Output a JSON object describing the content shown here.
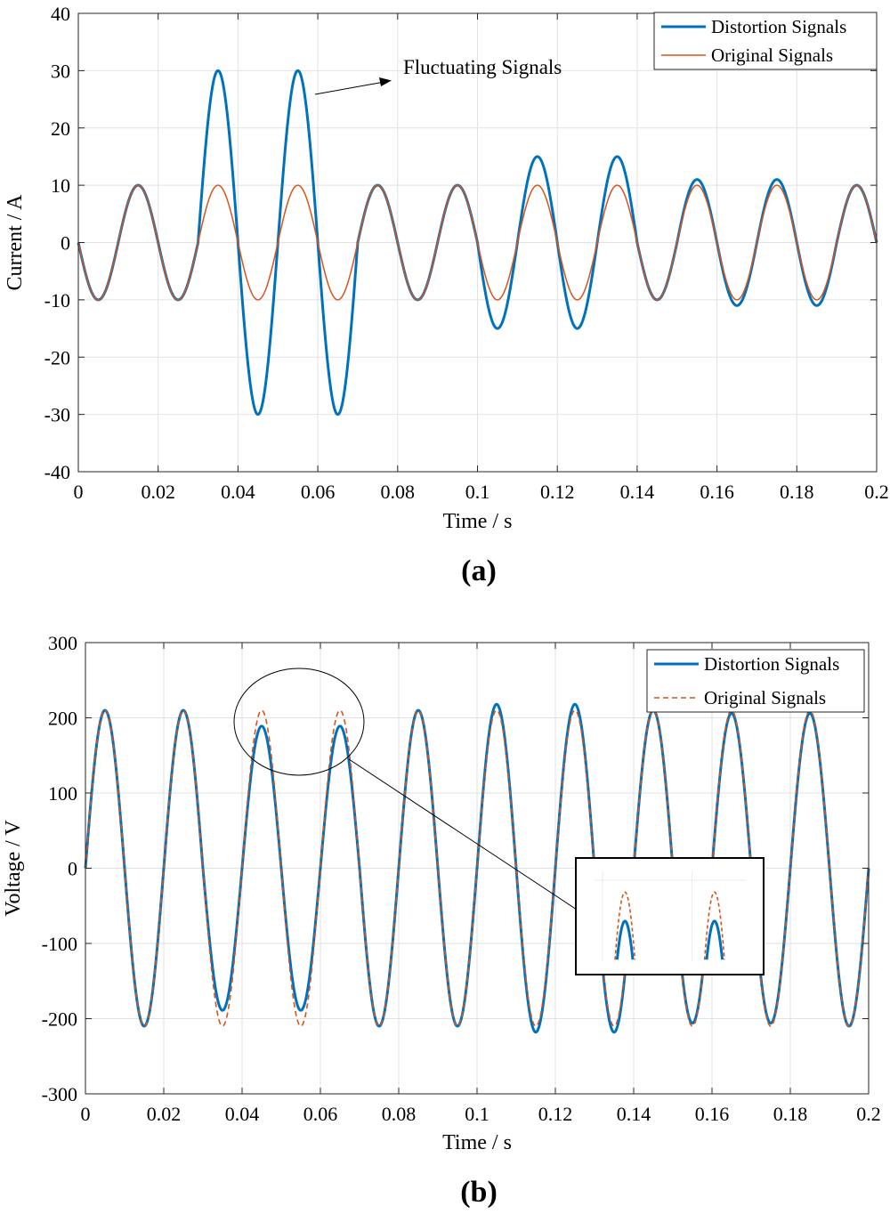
{
  "chart_data": [
    {
      "type": "line",
      "panel_label": "(a)",
      "xlabel": "Time / s",
      "ylabel": "Current / A",
      "xlim": [
        0,
        0.2
      ],
      "ylim": [
        -40,
        40
      ],
      "xticks": [
        0,
        0.02,
        0.04,
        0.06,
        0.08,
        0.1,
        0.12,
        0.14,
        0.16,
        0.18,
        0.2
      ],
      "yticks": [
        -40,
        -30,
        -20,
        -10,
        0,
        10,
        20,
        30,
        40
      ],
      "grid": true,
      "legend_position": "top-right",
      "annotation": "Fluctuating Signals",
      "signal": {
        "frequency_hz": 50,
        "phase": "-sin"
      },
      "series": [
        {
          "name": "Distortion Signals",
          "color": "#0072bd",
          "style": "solid-thick",
          "amplitude_segments": [
            {
              "t_start": 0,
              "t_end": 0.03,
              "amplitude": 10
            },
            {
              "t_start": 0.03,
              "t_end": 0.07,
              "amplitude": 30
            },
            {
              "t_start": 0.07,
              "t_end": 0.1,
              "amplitude": 10
            },
            {
              "t_start": 0.1,
              "t_end": 0.14,
              "amplitude": 15
            },
            {
              "t_start": 0.14,
              "t_end": 0.15,
              "amplitude": 10
            },
            {
              "t_start": 0.15,
              "t_end": 0.19,
              "amplitude": 11
            },
            {
              "t_start": 0.19,
              "t_end": 0.2,
              "amplitude": 10
            }
          ]
        },
        {
          "name": "Original Signals",
          "color": "#d95319",
          "style": "solid-thin",
          "amplitude_segments": [
            {
              "t_start": 0,
              "t_end": 0.2,
              "amplitude": 10
            }
          ]
        }
      ]
    },
    {
      "type": "line",
      "panel_label": "(b)",
      "xlabel": "Time / s",
      "ylabel": "Voltage / V",
      "xlim": [
        0,
        0.2
      ],
      "ylim": [
        -300,
        300
      ],
      "xticks": [
        0,
        0.02,
        0.04,
        0.06,
        0.08,
        0.1,
        0.12,
        0.14,
        0.16,
        0.18,
        0.2
      ],
      "yticks": [
        -300,
        -200,
        -100,
        0,
        100,
        200,
        300
      ],
      "grid": true,
      "legend_position": "top-right",
      "zoom_inset": {
        "region_t": [
          0.038,
          0.072
        ],
        "description": "peaks near 0.045 s and 0.065 s"
      },
      "signal": {
        "frequency_hz": 50,
        "phase": "sin"
      },
      "series": [
        {
          "name": "Distortion Signals",
          "color": "#0072bd",
          "style": "solid-thick",
          "amplitude_segments": [
            {
              "t_start": 0,
              "t_end": 0.03,
              "amplitude": 210
            },
            {
              "t_start": 0.03,
              "t_end": 0.07,
              "amplitude": 189
            },
            {
              "t_start": 0.07,
              "t_end": 0.1,
              "amplitude": 210
            },
            {
              "t_start": 0.1,
              "t_end": 0.14,
              "amplitude": 218
            },
            {
              "t_start": 0.14,
              "t_end": 0.15,
              "amplitude": 210
            },
            {
              "t_start": 0.15,
              "t_end": 0.19,
              "amplitude": 206
            },
            {
              "t_start": 0.19,
              "t_end": 0.2,
              "amplitude": 210
            }
          ]
        },
        {
          "name": "Original Signals",
          "color": "#d95319",
          "style": "dashed",
          "amplitude_segments": [
            {
              "t_start": 0,
              "t_end": 0.2,
              "amplitude": 210
            }
          ]
        }
      ]
    }
  ]
}
